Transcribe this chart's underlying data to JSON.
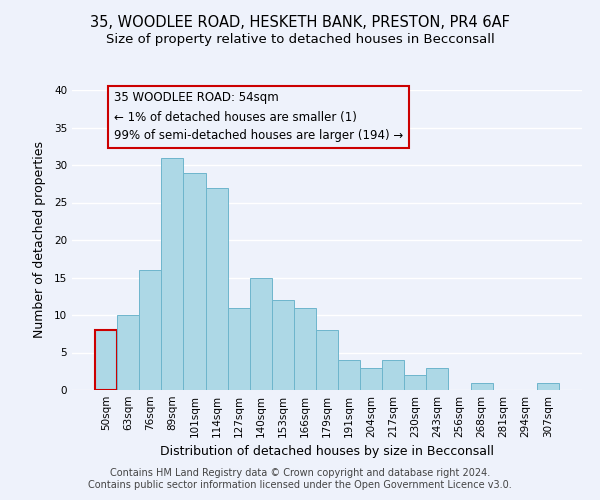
{
  "title_line1": "35, WOODLEE ROAD, HESKETH BANK, PRESTON, PR4 6AF",
  "title_line2": "Size of property relative to detached houses in Becconsall",
  "xlabel": "Distribution of detached houses by size in Becconsall",
  "ylabel": "Number of detached properties",
  "bin_labels": [
    "50sqm",
    "63sqm",
    "76sqm",
    "89sqm",
    "101sqm",
    "114sqm",
    "127sqm",
    "140sqm",
    "153sqm",
    "166sqm",
    "179sqm",
    "191sqm",
    "204sqm",
    "217sqm",
    "230sqm",
    "243sqm",
    "256sqm",
    "268sqm",
    "281sqm",
    "294sqm",
    "307sqm"
  ],
  "bar_heights": [
    8,
    10,
    16,
    31,
    29,
    27,
    11,
    15,
    12,
    11,
    8,
    4,
    3,
    4,
    2,
    3,
    0,
    1,
    0,
    0,
    1
  ],
  "bar_color": "#add8e6",
  "bar_edge_color": "#6eb5cc",
  "highlight_bar_index": 0,
  "highlight_edge_color": "#cc0000",
  "ylim": [
    0,
    40
  ],
  "yticks": [
    0,
    5,
    10,
    15,
    20,
    25,
    30,
    35,
    40
  ],
  "annotation_line1": "35 WOODLEE ROAD: 54sqm",
  "annotation_line2": "← 1% of detached houses are smaller (1)",
  "annotation_line3": "99% of semi-detached houses are larger (194) →",
  "footer_line1": "Contains HM Land Registry data © Crown copyright and database right 2024.",
  "footer_line2": "Contains public sector information licensed under the Open Government Licence v3.0.",
  "background_color": "#eef2fb",
  "grid_color": "#ffffff",
  "title_fontsize": 10.5,
  "subtitle_fontsize": 9.5,
  "axis_label_fontsize": 9,
  "tick_fontsize": 7.5,
  "footer_fontsize": 7,
  "annotation_fontsize": 8.5
}
